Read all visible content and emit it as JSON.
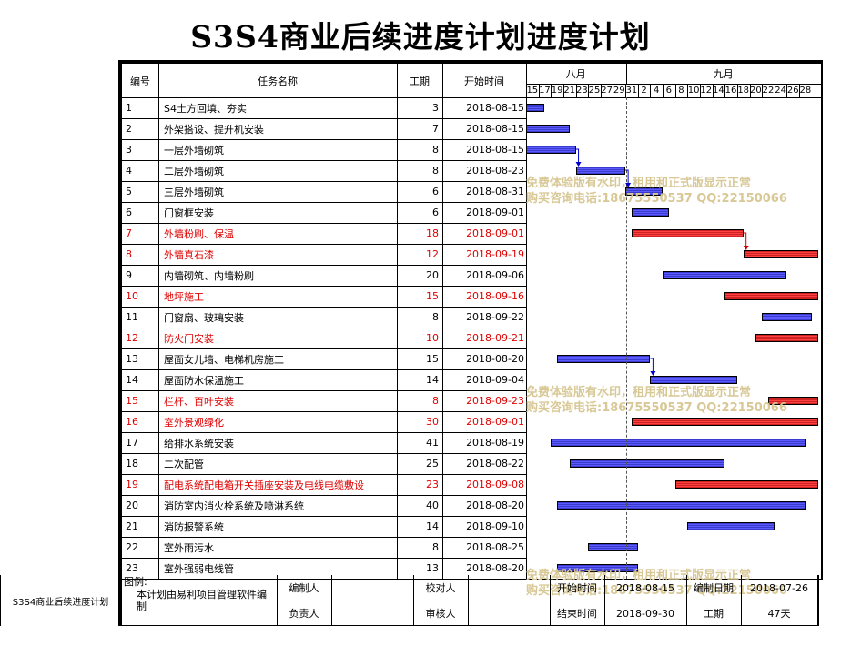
{
  "title": "S3S4商业后续进度计划进度计划",
  "side_label": "S3S4商业后续进度计划",
  "columns": {
    "id": "编号",
    "task": "任务名称",
    "duration": "工期",
    "start": "开始时间"
  },
  "months": [
    "八月",
    "九月"
  ],
  "days": [
    "15",
    "17",
    "19",
    "21",
    "23",
    "25",
    "27",
    "29",
    "31",
    "2",
    "4",
    "6",
    "8",
    "10",
    "12",
    "14",
    "16",
    "18",
    "20",
    "22",
    "24",
    "26",
    "28"
  ],
  "chart_origin_date": "2018-08-15",
  "tasks": [
    {
      "id": "1",
      "name": "S4土方回填、夯实",
      "duration": "3",
      "start": "2018-08-15",
      "critical": false,
      "bar_offset": 0,
      "bar_len": 3
    },
    {
      "id": "2",
      "name": "外架搭设、提升机安装",
      "duration": "7",
      "start": "2018-08-15",
      "critical": false,
      "bar_offset": 0,
      "bar_len": 7
    },
    {
      "id": "3",
      "name": "一层外墙砌筑",
      "duration": "8",
      "start": "2018-08-15",
      "critical": false,
      "bar_offset": 0,
      "bar_len": 8
    },
    {
      "id": "4",
      "name": "二层外墙砌筑",
      "duration": "8",
      "start": "2018-08-23",
      "critical": false,
      "bar_offset": 8,
      "bar_len": 8
    },
    {
      "id": "5",
      "name": "三层外墙砌筑",
      "duration": "6",
      "start": "2018-08-31",
      "critical": false,
      "bar_offset": 16,
      "bar_len": 6
    },
    {
      "id": "6",
      "name": "门窗框安装",
      "duration": "6",
      "start": "2018-09-01",
      "critical": false,
      "bar_offset": 17,
      "bar_len": 6
    },
    {
      "id": "7",
      "name": "外墙粉刷、保温",
      "duration": "18",
      "start": "2018-09-01",
      "critical": true,
      "bar_offset": 17,
      "bar_len": 18
    },
    {
      "id": "8",
      "name": "外墙真石漆",
      "duration": "12",
      "start": "2018-09-19",
      "critical": true,
      "bar_offset": 35,
      "bar_len": 12
    },
    {
      "id": "9",
      "name": "内墙砌筑、内墙粉刷",
      "duration": "20",
      "start": "2018-09-06",
      "critical": false,
      "bar_offset": 22,
      "bar_len": 20
    },
    {
      "id": "10",
      "name": "地坪施工",
      "duration": "15",
      "start": "2018-09-16",
      "critical": true,
      "bar_offset": 32,
      "bar_len": 15
    },
    {
      "id": "11",
      "name": "门窗扇、玻璃安装",
      "duration": "8",
      "start": "2018-09-22",
      "critical": false,
      "bar_offset": 38,
      "bar_len": 8
    },
    {
      "id": "12",
      "name": "防火门安装",
      "duration": "10",
      "start": "2018-09-21",
      "critical": true,
      "bar_offset": 37,
      "bar_len": 10
    },
    {
      "id": "13",
      "name": "屋面女儿墙、电梯机房施工",
      "duration": "15",
      "start": "2018-08-20",
      "critical": false,
      "bar_offset": 5,
      "bar_len": 15
    },
    {
      "id": "14",
      "name": "屋面防水保温施工",
      "duration": "14",
      "start": "2018-09-04",
      "critical": false,
      "bar_offset": 20,
      "bar_len": 14
    },
    {
      "id": "15",
      "name": "栏杆、百叶安装",
      "duration": "8",
      "start": "2018-09-23",
      "critical": true,
      "bar_offset": 39,
      "bar_len": 8
    },
    {
      "id": "16",
      "name": "室外景观绿化",
      "duration": "30",
      "start": "2018-09-01",
      "critical": true,
      "bar_offset": 17,
      "bar_len": 30
    },
    {
      "id": "17",
      "name": "给排水系统安装",
      "duration": "41",
      "start": "2018-08-19",
      "critical": false,
      "bar_offset": 4,
      "bar_len": 41
    },
    {
      "id": "18",
      "name": "二次配管",
      "duration": "25",
      "start": "2018-08-22",
      "critical": false,
      "bar_offset": 7,
      "bar_len": 25
    },
    {
      "id": "19",
      "name": "配电系统配电箱开关插座安装及电线电缆敷设",
      "duration": "23",
      "start": "2018-09-08",
      "critical": true,
      "bar_offset": 24,
      "bar_len": 23
    },
    {
      "id": "20",
      "name": "消防室内消火栓系统及喷淋系统",
      "duration": "40",
      "start": "2018-08-20",
      "critical": false,
      "bar_offset": 5,
      "bar_len": 40
    },
    {
      "id": "21",
      "name": "消防报警系统",
      "duration": "14",
      "start": "2018-09-10",
      "critical": false,
      "bar_offset": 26,
      "bar_len": 14
    },
    {
      "id": "22",
      "name": "室外雨污水",
      "duration": "8",
      "start": "2018-08-25",
      "critical": false,
      "bar_offset": 10,
      "bar_len": 8
    },
    {
      "id": "23",
      "name": "室外强弱电线管",
      "duration": "13",
      "start": "2018-08-20",
      "critical": false,
      "bar_offset": 5,
      "bar_len": 13
    }
  ],
  "watermark": {
    "line1": "免费体验版有水印，租用和正式版显示正常",
    "line2": "购买咨询电话:18675550537 QQ:22150066"
  },
  "footer": {
    "legend_label": "图例:",
    "note": "本计划由易利项目管理软件编制",
    "compiler_label": "编制人",
    "compiler_value": "",
    "checker_label": "校对人",
    "checker_value": "",
    "responsible_label": "负责人",
    "responsible_value": "",
    "reviewer_label": "审核人",
    "reviewer_value": "",
    "start_label": "开始时间",
    "start_value": "2018-08-15",
    "end_label": "结束时间",
    "end_value": "2018-09-30",
    "date_label": "编制日期",
    "date_value": "2018-07-26",
    "duration_label": "工期",
    "duration_value": "47天"
  },
  "colors": {
    "normal_bar": "#5a5aff",
    "critical_bar": "#ff4040",
    "critical_text": "#e00000"
  }
}
